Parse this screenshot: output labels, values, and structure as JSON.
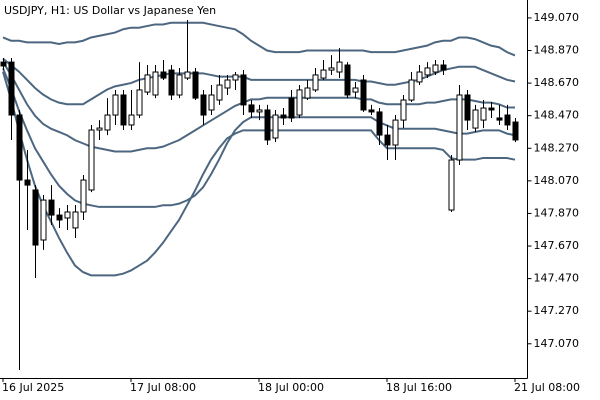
{
  "chart_data": {
    "type": "candlestick",
    "title": "USDJPY, H1:  US Dollar vs Japanese Yen",
    "categories": [
      "16 Jul 2025",
      null,
      null,
      null,
      null,
      null,
      null,
      null,
      null,
      null,
      null,
      null,
      null,
      null,
      null,
      null,
      "17 Jul 08:00",
      null,
      null,
      null,
      null,
      null,
      null,
      null,
      null,
      null,
      null,
      null,
      null,
      null,
      null,
      null,
      "18 Jul 00:00",
      null,
      null,
      null,
      null,
      null,
      null,
      null,
      null,
      null,
      null,
      null,
      null,
      null,
      null,
      null,
      "18 Jul 16:00",
      null,
      null,
      null,
      null,
      null,
      null,
      null,
      null,
      null,
      null,
      null,
      null,
      null,
      null,
      null,
      "21 Jul 08:00"
    ],
    "open": [
      148.799,
      148.799,
      148.474,
      148.075,
      148.014,
      147.707,
      147.952,
      147.86,
      147.842,
      147.781,
      147.879,
      148.014,
      148.382,
      148.382,
      148.474,
      148.597,
      148.413,
      148.474,
      148.615,
      148.597,
      148.738,
      148.75,
      148.597,
      148.701,
      148.738,
      148.597,
      148.505,
      148.566,
      148.64,
      148.689,
      148.72,
      148.536,
      148.493,
      148.505,
      148.333,
      148.474,
      148.578,
      148.474,
      148.578,
      148.628,
      148.701,
      148.75,
      148.738,
      148.781,
      148.615,
      148.689,
      148.505,
      148.493,
      148.351,
      148.29,
      148.443,
      148.566,
      148.677,
      148.72,
      148.738,
      148.781,
      147.891,
      148.198,
      148.597,
      148.394,
      148.443,
      148.517,
      148.456,
      148.474,
      148.431
    ],
    "high": [
      148.824,
      148.824,
      148.505,
      148.259,
      148.044,
      147.983,
      148.044,
      147.903,
      147.922,
      147.922,
      148.106,
      148.413,
      148.443,
      148.578,
      148.628,
      148.628,
      148.628,
      148.799,
      148.781,
      148.781,
      148.812,
      148.781,
      148.763,
      149.057,
      148.763,
      148.628,
      148.658,
      148.72,
      148.72,
      148.738,
      148.75,
      148.566,
      148.536,
      148.536,
      148.505,
      148.517,
      148.628,
      148.658,
      148.689,
      148.763,
      148.812,
      148.842,
      148.885,
      148.799,
      148.677,
      148.72,
      148.536,
      148.517,
      148.413,
      148.474,
      148.597,
      148.738,
      148.781,
      148.799,
      148.812,
      148.812,
      148.229,
      148.658,
      148.628,
      148.536,
      148.566,
      148.554,
      148.536,
      148.536,
      148.456
    ],
    "low": [
      148.75,
      148.321,
      146.909,
      147.768,
      147.474,
      147.646,
      147.799,
      147.781,
      147.768,
      147.719,
      147.83,
      148.001,
      148.321,
      148.351,
      148.413,
      148.382,
      148.382,
      148.456,
      148.597,
      148.578,
      148.689,
      148.566,
      148.578,
      148.689,
      148.566,
      148.413,
      148.474,
      148.536,
      148.597,
      148.628,
      148.474,
      148.456,
      148.443,
      148.29,
      148.308,
      148.413,
      148.431,
      148.456,
      148.566,
      148.615,
      148.689,
      148.72,
      148.701,
      148.578,
      148.578,
      148.493,
      148.474,
      148.29,
      148.198,
      148.198,
      148.394,
      148.554,
      148.658,
      148.701,
      148.72,
      148.72,
      147.879,
      148.167,
      148.382,
      148.37,
      148.394,
      148.456,
      148.413,
      148.382,
      148.308
    ],
    "close": [
      148.775,
      148.474,
      148.075,
      148.044,
      147.676,
      147.952,
      147.86,
      147.83,
      147.879,
      147.879,
      148.075,
      148.382,
      148.394,
      148.474,
      148.597,
      148.413,
      148.474,
      148.628,
      148.72,
      148.738,
      148.701,
      148.597,
      148.72,
      148.738,
      148.578,
      148.474,
      148.597,
      148.658,
      148.689,
      148.72,
      148.536,
      148.493,
      148.505,
      148.321,
      148.474,
      148.456,
      148.456,
      148.628,
      148.64,
      148.72,
      148.75,
      148.763,
      148.799,
      148.597,
      148.64,
      148.505,
      148.493,
      148.351,
      148.29,
      148.443,
      148.566,
      148.689,
      148.738,
      148.763,
      148.781,
      148.75,
      148.198,
      148.597,
      148.443,
      148.505,
      148.517,
      148.505,
      148.443,
      148.413,
      148.321
    ],
    "up_color": "#ffffff",
    "down_color": "#000000",
    "edge_color": "#000000",
    "lines": [
      {
        "color": "#4d6780",
        "values": [
          148.95,
          148.93,
          148.93,
          148.92,
          148.92,
          148.92,
          148.92,
          148.91,
          148.92,
          148.92,
          148.93,
          148.95,
          148.96,
          148.97,
          148.98,
          149.0,
          149.01,
          149.01,
          149.02,
          149.03,
          149.03,
          149.04,
          149.04,
          149.04,
          149.04,
          149.04,
          149.03,
          149.02,
          149.01,
          149.0,
          148.97,
          148.93,
          148.9,
          148.87,
          148.86,
          148.86,
          148.86,
          148.86,
          148.87,
          148.87,
          148.87,
          148.87,
          148.87,
          148.87,
          148.87,
          148.87,
          148.86,
          148.86,
          148.86,
          148.86,
          148.87,
          148.88,
          148.89,
          148.9,
          148.92,
          148.93,
          148.93,
          148.95,
          148.95,
          148.94,
          148.92,
          148.9,
          148.89,
          148.86,
          148.84
        ]
      },
      {
        "color": "#4d6780",
        "values": [
          148.82,
          148.78,
          148.74,
          148.69,
          148.64,
          148.6,
          148.57,
          148.55,
          148.54,
          148.54,
          148.54,
          148.57,
          148.6,
          148.63,
          148.65,
          148.66,
          148.67,
          148.69,
          148.7,
          148.71,
          148.72,
          148.73,
          148.73,
          148.73,
          148.73,
          148.73,
          148.72,
          148.71,
          148.71,
          148.71,
          148.71,
          148.69,
          148.69,
          148.69,
          148.69,
          148.69,
          148.69,
          148.69,
          148.69,
          148.69,
          148.69,
          148.69,
          148.69,
          148.69,
          148.69,
          148.68,
          148.68,
          148.67,
          148.66,
          148.66,
          148.67,
          148.68,
          148.69,
          148.71,
          148.73,
          148.75,
          148.76,
          148.77,
          148.77,
          148.77,
          148.75,
          148.73,
          148.71,
          148.69,
          148.68
        ]
      },
      {
        "color": "#4d6780",
        "values": [
          148.8,
          148.72,
          148.63,
          148.54,
          148.47,
          148.42,
          148.39,
          148.37,
          148.35,
          148.32,
          148.3,
          148.28,
          148.27,
          148.26,
          148.25,
          148.25,
          148.25,
          148.26,
          148.27,
          148.27,
          148.28,
          148.3,
          148.32,
          148.35,
          148.38,
          148.41,
          148.44,
          148.47,
          148.5,
          148.53,
          148.55,
          148.57,
          148.57,
          148.58,
          148.58,
          148.58,
          148.58,
          148.58,
          148.58,
          148.58,
          148.58,
          148.58,
          148.58,
          148.58,
          148.58,
          148.57,
          148.57,
          148.55,
          148.54,
          148.54,
          148.54,
          148.54,
          148.54,
          148.55,
          148.55,
          148.56,
          148.57,
          148.57,
          148.57,
          148.56,
          148.55,
          148.55,
          148.54,
          148.52,
          148.52
        ]
      },
      {
        "color": "#4d6780",
        "values": [
          148.76,
          148.64,
          148.5,
          148.38,
          148.27,
          148.19,
          148.11,
          148.04,
          147.99,
          147.95,
          147.93,
          147.92,
          147.91,
          147.91,
          147.91,
          147.91,
          147.91,
          147.91,
          147.91,
          147.91,
          147.92,
          147.92,
          147.93,
          147.95,
          147.98,
          148.03,
          148.11,
          148.2,
          148.3,
          148.38,
          148.43,
          148.46,
          148.46,
          148.46,
          148.46,
          148.46,
          148.46,
          148.46,
          148.46,
          148.46,
          148.46,
          148.46,
          148.46,
          148.46,
          148.46,
          148.46,
          148.46,
          148.43,
          148.41,
          148.39,
          148.39,
          148.39,
          148.39,
          148.39,
          148.39,
          148.38,
          148.37,
          148.36,
          148.36,
          148.37,
          148.38,
          148.38,
          148.38,
          148.36,
          148.35
        ]
      },
      {
        "color": "#4d6780",
        "values": [
          148.74,
          148.57,
          148.38,
          148.2,
          148.04,
          147.92,
          147.82,
          147.72,
          147.63,
          147.55,
          147.51,
          147.49,
          147.49,
          147.49,
          147.49,
          147.5,
          147.52,
          147.55,
          147.58,
          147.63,
          147.69,
          147.76,
          147.83,
          147.92,
          148.01,
          148.11,
          148.2,
          148.27,
          148.33,
          148.36,
          148.38,
          148.38,
          148.38,
          148.38,
          148.38,
          148.38,
          148.38,
          148.38,
          148.38,
          148.38,
          148.38,
          148.38,
          148.38,
          148.38,
          148.38,
          148.38,
          148.38,
          148.32,
          148.27,
          148.27,
          148.27,
          148.27,
          148.27,
          148.27,
          148.27,
          148.26,
          148.21,
          148.2,
          148.2,
          148.2,
          148.21,
          148.21,
          148.21,
          148.21,
          148.2
        ]
      }
    ],
    "ylim": [
      146.86,
      149.18
    ],
    "yticks": [
      {
        "value": 149.07,
        "label": "149.070"
      },
      {
        "value": 148.87,
        "label": "148.870"
      },
      {
        "value": 148.67,
        "label": "148.670"
      },
      {
        "value": 148.47,
        "label": "148.470"
      },
      {
        "value": 148.27,
        "label": "148.270"
      },
      {
        "value": 148.07,
        "label": "148.070"
      },
      {
        "value": 147.87,
        "label": "147.870"
      },
      {
        "value": 147.67,
        "label": "147.670"
      },
      {
        "value": 147.47,
        "label": "147.470"
      },
      {
        "value": 147.27,
        "label": "147.270"
      },
      {
        "value": 147.07,
        "label": "147.070"
      }
    ],
    "grid": false
  }
}
